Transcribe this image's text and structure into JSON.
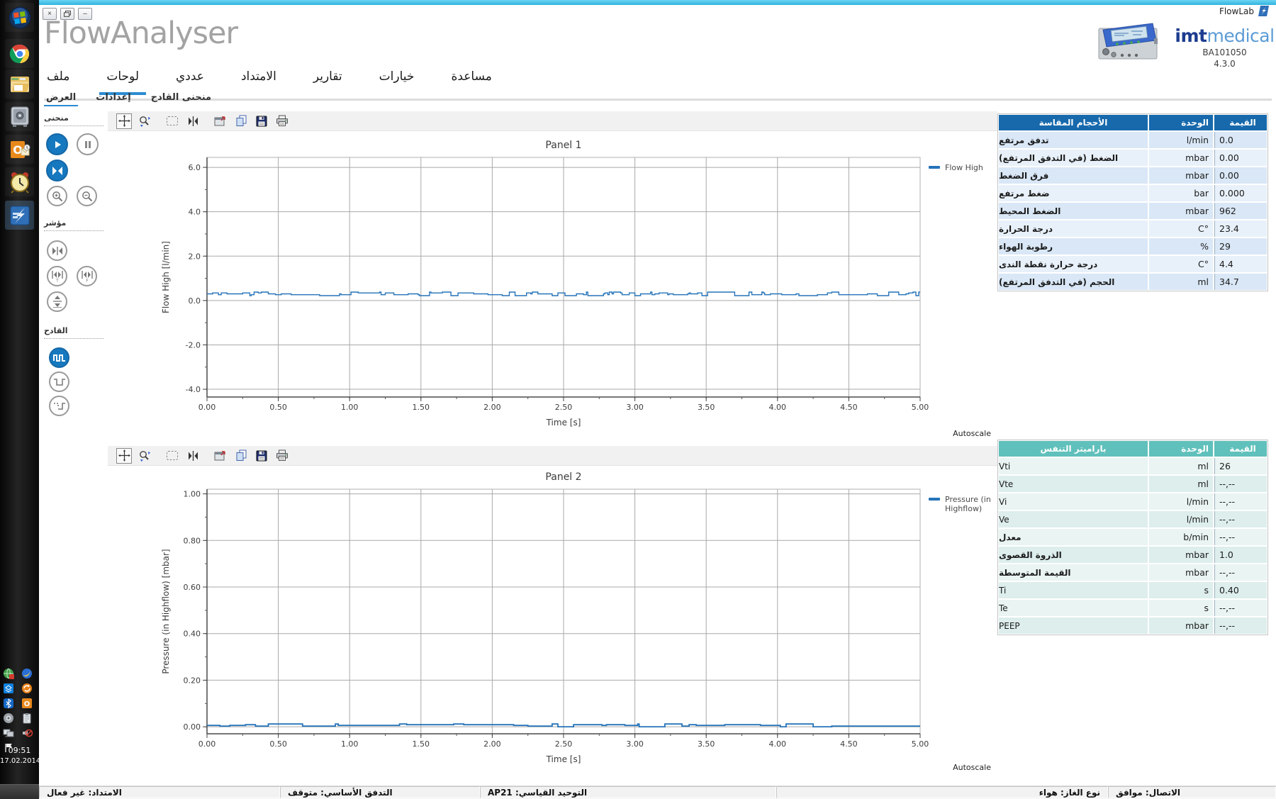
{
  "window": {
    "title": "FlowAnalyser",
    "app_label": "FlowLab",
    "controls": {
      "close": "×",
      "minimize": "–"
    }
  },
  "branding": {
    "logo_bold": "imt",
    "logo_light": "medical",
    "model": "BA101050",
    "version": "4.3.0"
  },
  "taskbar": {
    "time": "09:51",
    "date": "17.02.2014",
    "launcher_icons": [
      "windows-start",
      "chrome",
      "file-manager",
      "safe",
      "outlook",
      "alarm-clock",
      "flowlab"
    ],
    "tray_icons": [
      "network-sync",
      "messenger",
      "dropbox",
      "sync",
      "bluetooth",
      "outlook-tray",
      "volume-app",
      "clipboard",
      "remote-pc",
      "speaker-muted",
      "flag"
    ]
  },
  "menu": {
    "items": [
      {
        "label": "ملف",
        "active": false
      },
      {
        "label": "لوحات",
        "active": true
      },
      {
        "label": "عددي",
        "active": false
      },
      {
        "label": "الامتداد",
        "active": false
      },
      {
        "label": "تقارير",
        "active": false
      },
      {
        "label": "خيارات",
        "active": false
      },
      {
        "label": "مساعدة",
        "active": false
      }
    ]
  },
  "tabs": {
    "items": [
      {
        "label": "العرض",
        "active": true
      },
      {
        "label": "إعدادات",
        "active": false
      },
      {
        "label": "منحنى القادح",
        "active": false
      }
    ]
  },
  "sidebar": {
    "sections": [
      {
        "title": "منحنى"
      },
      {
        "title": "مؤشر"
      },
      {
        "title": "القادح"
      }
    ]
  },
  "toolbar": {
    "icons": [
      "pan-tool-icon",
      "zoom-tool-icon",
      "select-region-icon",
      "cursor-markers-icon",
      "export-chart-icon",
      "copy-icon",
      "save-icon",
      "print-icon"
    ]
  },
  "chart_data": [
    {
      "type": "line",
      "title": "Panel 1",
      "xlabel": "Time [s]",
      "ylabel": "Flow High [l/min]",
      "xlim": [
        0,
        5
      ],
      "ylim": [
        -4.35,
        6.45
      ],
      "x_tick_labels": [
        "0.00",
        "0.50",
        "1.00",
        "1.50",
        "2.00",
        "2.50",
        "3.00",
        "3.50",
        "4.00",
        "4.50",
        "5.00"
      ],
      "y_tick_labels": [
        "6.0",
        "4.0",
        "2.0",
        "0.0",
        "-2.0",
        "-4.0"
      ],
      "x_minor_step": 0.25,
      "y_minor_step": 1.0,
      "grid": true,
      "legend": {
        "lines": [
          "Flow High"
        ],
        "color": "#2573b9"
      },
      "series": [
        {
          "name": "Flow High",
          "style": "step-noise",
          "baseline": 0.3,
          "noise_amplitude": 0.08,
          "toggle_p": 0.3,
          "width": 1.4,
          "color": "#2573b9"
        }
      ],
      "autoscale_label": "Autoscale"
    },
    {
      "type": "line",
      "title": "Panel 2",
      "xlabel": "Time [s]",
      "ylabel": "Pressure (in Highflow) [mbar]",
      "xlim": [
        0,
        5
      ],
      "ylim": [
        -0.03,
        1.02
      ],
      "x_tick_labels": [
        "0.00",
        "0.50",
        "1.00",
        "1.50",
        "2.00",
        "2.50",
        "3.00",
        "3.50",
        "4.00",
        "4.50",
        "5.00"
      ],
      "y_tick_labels": [
        "1.00",
        "0.80",
        "0.60",
        "0.40",
        "0.20",
        "0.00"
      ],
      "x_minor_step": 0.25,
      "y_minor_step": 0.1,
      "grid": true,
      "legend": {
        "lines": [
          "Pressure (in",
          "Highflow)"
        ],
        "color": "#2573b9"
      },
      "series": [
        {
          "name": "Pressure (in Highflow)",
          "style": "step-noise",
          "baseline": 0.006,
          "noise_amplitude": 0.006,
          "toggle_p": 0.1,
          "width": 1.8,
          "color": "#2573b9"
        }
      ],
      "autoscale_label": "Autoscale"
    }
  ],
  "tables": {
    "measured": {
      "header_color": "#1769ac",
      "row_color": "#d9e7f6",
      "row_alt_color": "#e8f1fa",
      "headers": {
        "name": "الأحجام المقاسة",
        "unit": "الوحدة",
        "value": "القيمة"
      },
      "rows": [
        [
          "تدفق مرتفع",
          "l/min",
          "0.0"
        ],
        [
          "الضغط (في التدفق المرتفع)",
          "mbar",
          "0.00"
        ],
        [
          "فرق الضغط",
          "mbar",
          "0.00"
        ],
        [
          "ضغط مرتفع",
          "bar",
          "0.000"
        ],
        [
          "الضغط المحيط",
          "mbar",
          "962"
        ],
        [
          "درجة الحرارة",
          "C°",
          "23.4"
        ],
        [
          "رطوبة الهواء",
          "%",
          "29"
        ],
        [
          "درجة حرارة نقطة الندى",
          "C°",
          "4.4"
        ],
        [
          "الحجم (في التدفق المرتفع)",
          "ml",
          "34.7"
        ]
      ]
    },
    "breath": {
      "header_color": "#60c0bb",
      "row_color": "#e9f4f3",
      "row_alt_color": "#ddeeec",
      "headers": {
        "name": "باراميتر التنفس",
        "unit": "الوحدة",
        "value": "القيمة"
      },
      "rows": [
        [
          "Vti",
          "ml",
          "26"
        ],
        [
          "Vte",
          "ml",
          "--,--"
        ],
        [
          "Vi",
          "l/min",
          "--,--"
        ],
        [
          "Ve",
          "l/min",
          "--,--"
        ],
        [
          "معدل",
          "b/min",
          "--,--"
        ],
        [
          "الذروة القصوى",
          "mbar",
          "1.0"
        ],
        [
          "القيمة المتوسطة",
          "mbar",
          "--,--"
        ],
        [
          "Ti",
          "s",
          "0.40"
        ],
        [
          "Te",
          "s",
          "--,--"
        ],
        [
          "PEEP",
          "mbar",
          "--,--"
        ]
      ]
    }
  },
  "status_bar": {
    "items": [
      "الامتداد: غير فعال",
      "التدفق الأساسي: متوقف",
      "التوحيد القياسي: AP21",
      "نوع الغاز: هواء",
      "الاتصال: موافق"
    ]
  }
}
